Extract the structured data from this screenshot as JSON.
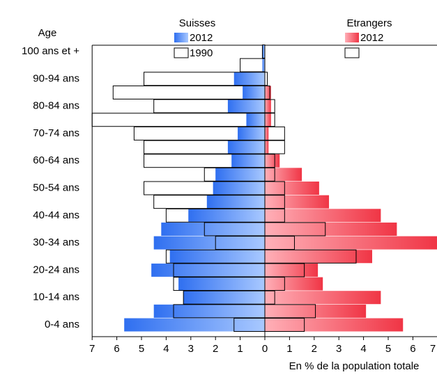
{
  "chart_data": {
    "type": "pyramid",
    "y_axis_label": "Age",
    "x_axis_label": "En % de la population totale",
    "categories": [
      "0-4 ans",
      null,
      "10-14 ans",
      null,
      "20-24 ans",
      null,
      "30-34 ans",
      null,
      "40-44 ans",
      null,
      "50-54 ans",
      null,
      "60-64 ans",
      null,
      "70-74 ans",
      null,
      "80-84 ans",
      null,
      "90-94 ans",
      null,
      "100 ans et +"
    ],
    "xlim": [
      -7,
      7
    ],
    "xticks": [
      {
        "value": -7,
        "label": "7"
      },
      {
        "value": -6,
        "label": "6"
      },
      {
        "value": -5,
        "label": "5"
      },
      {
        "value": -4,
        "label": "4"
      },
      {
        "value": -3,
        "label": "3"
      },
      {
        "value": -2,
        "label": "2"
      },
      {
        "value": -1,
        "label": "1"
      },
      0,
      1,
      2,
      3,
      4,
      5,
      6,
      7
    ],
    "sides": [
      {
        "name": "Suisses",
        "side": "left",
        "series": [
          {
            "name": "2012",
            "color": "#4f8ff7",
            "style": "filled",
            "values": [
              5.7,
              4.5,
              3.3,
              3.5,
              4.6,
              3.85,
              4.5,
              4.2,
              3.1,
              2.35,
              2.1,
              2.0,
              1.35,
              1.5,
              1.1,
              0.75,
              1.5,
              0.9,
              1.25,
              0.1,
              0.1
            ]
          },
          {
            "name": "1990",
            "color": "#000000",
            "style": "outline",
            "values": [
              1.25,
              3.7,
              3.3,
              3.7,
              3.7,
              4.0,
              2.0,
              2.45,
              4.0,
              4.5,
              4.9,
              2.45,
              4.9,
              4.9,
              5.3,
              7.0,
              4.5,
              6.15,
              4.9,
              1.0,
              0.1
            ]
          }
        ]
      },
      {
        "name": "Etrangers",
        "side": "right",
        "series": [
          {
            "name": "2012",
            "color": "#f5505f",
            "style": "filled",
            "values": [
              5.6,
              4.1,
              4.7,
              2.35,
              2.15,
              4.35,
              7.0,
              5.35,
              4.7,
              2.6,
              2.2,
              1.5,
              0.6,
              0.15,
              0.15,
              0.25,
              0.25,
              0.25,
              0,
              0,
              0
            ]
          },
          {
            "color": "#000000",
            "style": "outline",
            "values": [
              1.6,
              2.05,
              0.4,
              0.8,
              1.6,
              3.7,
              1.2,
              2.45,
              0.8,
              0.8,
              0.8,
              0.4,
              0.4,
              0.8,
              0.8,
              0.4,
              0.4,
              0.2,
              0.1,
              0,
              0
            ]
          }
        ]
      }
    ]
  }
}
